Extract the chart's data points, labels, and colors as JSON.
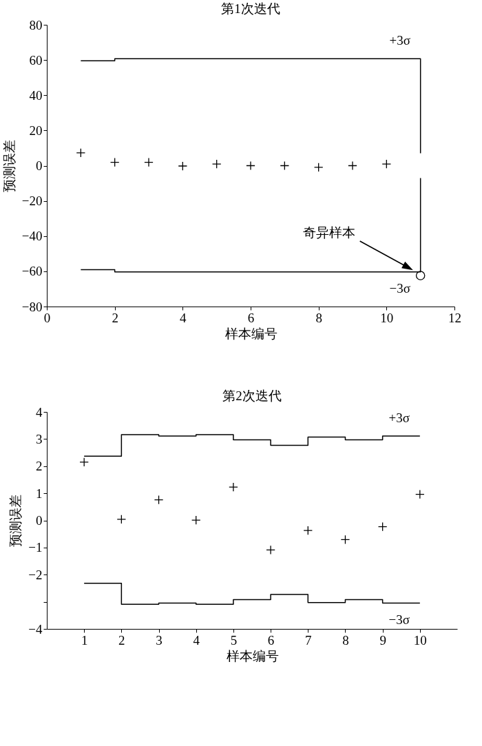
{
  "chart_data": [
    {
      "type": "scatter",
      "title": "第1次迭代",
      "xlabel": "样本编号",
      "ylabel": "预测误差",
      "xlim": [
        0,
        12
      ],
      "xticks": [
        0,
        2,
        4,
        6,
        8,
        10,
        12
      ],
      "ylim": [
        -80,
        80
      ],
      "yticks": [
        -80,
        -60,
        -40,
        -20,
        0,
        20,
        40,
        60,
        80
      ],
      "series": [
        {
          "type": "step",
          "color": "#000000",
          "line_style": "solid",
          "x": [
            1,
            2,
            11,
            11
          ],
          "values": [
            59.6,
            60.7,
            60.7,
            7
          ]
        },
        {
          "type": "step",
          "color": "#000000",
          "line_style": "solid",
          "x": [
            1,
            2,
            11,
            11
          ],
          "values": [
            -59.1,
            -60.3,
            -60.3,
            -7
          ]
        },
        {
          "type": "scatter",
          "color": "#000000",
          "marker": "cross",
          "x": [
            1,
            2,
            3,
            4,
            5,
            6,
            7,
            8,
            9,
            10
          ],
          "values": [
            7.3,
            1.9,
            1.9,
            -0.2,
            0.9,
            0,
            0,
            -0.9,
            0,
            0.9
          ]
        },
        {
          "type": "scatter",
          "color": "#000000",
          "marker": "circle",
          "x": [
            11
          ],
          "values": [
            -62.4
          ]
        }
      ],
      "annotations": [
        "+3σ",
        "−3σ",
        "奇异样本"
      ]
    },
    {
      "type": "scatter",
      "title": "第2次迭代",
      "xlabel": "样本编号",
      "ylabel": "预测误差",
      "xlim": [
        0,
        11
      ],
      "xticks": [
        1,
        2,
        3,
        4,
        5,
        6,
        7,
        8,
        9,
        10
      ],
      "ylim": [
        -4,
        4
      ],
      "yticks": [
        -4,
        {
          "value": -3,
          "label": null
        },
        -2,
        -1,
        0,
        1,
        2,
        3,
        4
      ],
      "series": [
        {
          "type": "step",
          "color": "#000000",
          "line_style": "solid",
          "x": [
            1,
            2,
            3,
            4,
            5,
            6,
            7,
            8,
            9,
            10
          ],
          "values": [
            2.37,
            3.16,
            3.11,
            3.16,
            2.97,
            2.77,
            3.07,
            2.97,
            3.11,
            3.11
          ]
        },
        {
          "type": "step",
          "color": "#000000",
          "line_style": "solid",
          "x": [
            1,
            2,
            3,
            4,
            5,
            6,
            7,
            8,
            9,
            10
          ],
          "values": [
            -2.32,
            -3.09,
            -3.05,
            -3.09,
            -2.92,
            -2.73,
            -3.03,
            -2.92,
            -3.05,
            -3.05
          ]
        },
        {
          "type": "scatter",
          "color": "#000000",
          "marker": "cross",
          "x": [
            1,
            2,
            3,
            4,
            5,
            6,
            7,
            8,
            9,
            10
          ],
          "values": [
            2.15,
            0.04,
            0.76,
            0.01,
            1.23,
            -1.09,
            -0.37,
            -0.71,
            -0.23,
            0.96
          ]
        }
      ],
      "annotations": [
        "+3σ",
        "−3σ"
      ]
    }
  ]
}
